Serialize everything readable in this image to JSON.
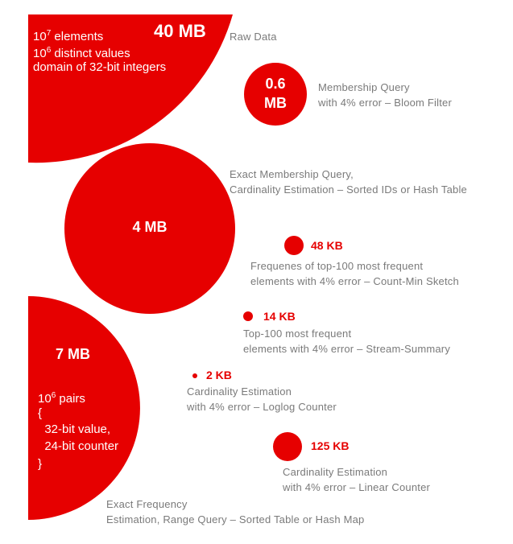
{
  "colors": {
    "accent": "#e60000",
    "label": "#7a7a7a",
    "background": "#ffffff"
  },
  "raw": {
    "size": "40 MB",
    "lines": [
      {
        "base": "10",
        "exp": "7",
        "rest": " elements"
      },
      {
        "base": "10",
        "exp": "6",
        "rest": " distinct values"
      },
      {
        "text": "domain of 32-bit integers"
      }
    ],
    "label": "Raw Data"
  },
  "bloom": {
    "size_line1": "0.6",
    "size_line2": "MB",
    "label_lines": [
      "Membership Query",
      "with 4% error – Bloom Filter"
    ]
  },
  "sorted_ids": {
    "size": "4 MB",
    "label_lines": [
      "Exact Membership Query,",
      "Cardinality Estimation – Sorted IDs or Hash Table"
    ]
  },
  "count_min": {
    "size": "48 KB",
    "label_lines": [
      "Frequenes of top-100 most frequent",
      "elements with 4% error – Count-Min Sketch"
    ]
  },
  "stream_summary": {
    "size": "14 KB",
    "label_lines": [
      "Top-100 most frequent",
      "elements with 4% error – Stream-Summary"
    ]
  },
  "loglog": {
    "size": "2 KB",
    "label_lines": [
      "Cardinality Estimation",
      "with 4% error – Loglog Counter"
    ]
  },
  "linear": {
    "size": "125 KB",
    "label_lines": [
      "Cardinality Estimation",
      "with 4% error – Linear Counter"
    ]
  },
  "hashmap": {
    "size": "7 MB",
    "lines": [
      {
        "base": "10",
        "exp": "6",
        "rest": " pairs"
      },
      {
        "text": "{"
      },
      {
        "text": "  32-bit value,"
      },
      {
        "text": "  24-bit counter"
      },
      {
        "text": "}"
      }
    ],
    "label_lines": [
      "Exact Frequency",
      "Estimation, Range Query – Sorted Table or Hash Map"
    ]
  }
}
